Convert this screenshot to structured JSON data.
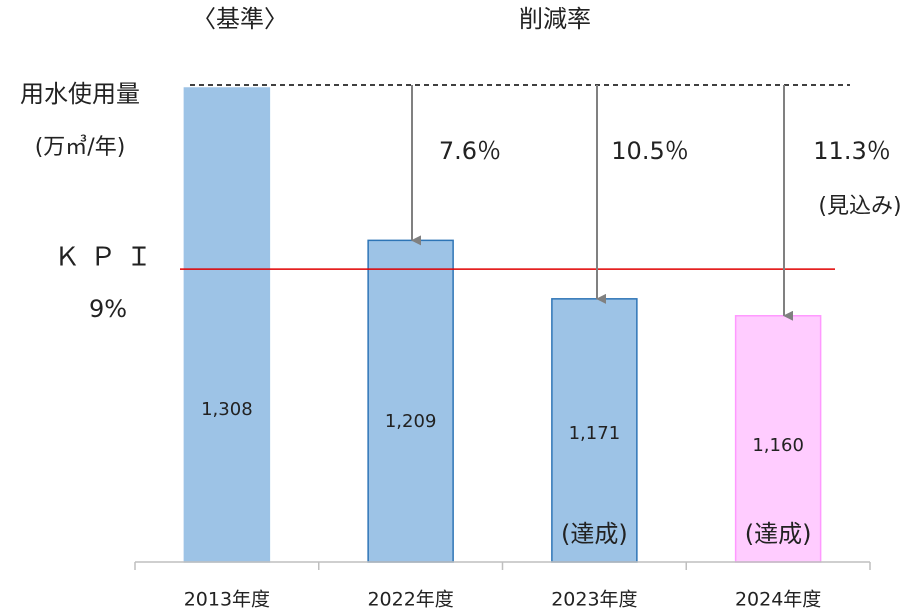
{
  "chart_data": {
    "type": "bar",
    "base_label": "〈基準〉",
    "reduction_title": "削減率",
    "y_label": [
      "用水使用量",
      "(万㎥/年)"
    ],
    "categories": [
      "2013年度",
      "2022年度",
      "2023年度",
      "2024年度"
    ],
    "values": [
      1308,
      1209,
      1171,
      1160
    ],
    "value_labels": [
      "1,308",
      "1,209",
      "1,171",
      "1,160"
    ],
    "colors": [
      "#9dc3e6",
      "#9dc3e6",
      "#9dc3e6",
      "#ffccff"
    ],
    "border_colors": [
      "#9dc3e6",
      "#2e75b6",
      "#2e75b6",
      "#ff99ff"
    ],
    "ylim": [
      1000,
      1308
    ],
    "reductions": [
      null,
      7.6,
      10.5,
      11.3
    ],
    "reduction_labels": [
      null,
      "7.6％",
      "10.5％",
      "11.3％"
    ],
    "reduction_notes": [
      null,
      null,
      null,
      "(見込み)"
    ],
    "notes": [
      null,
      null,
      "(達成)",
      "(達成)"
    ],
    "note_colors": [
      null,
      null,
      "#222222",
      "#ff0000"
    ],
    "kpi": {
      "name": "ＫＰＩ",
      "value": 9,
      "label": "9%",
      "color": "#e00000"
    }
  }
}
